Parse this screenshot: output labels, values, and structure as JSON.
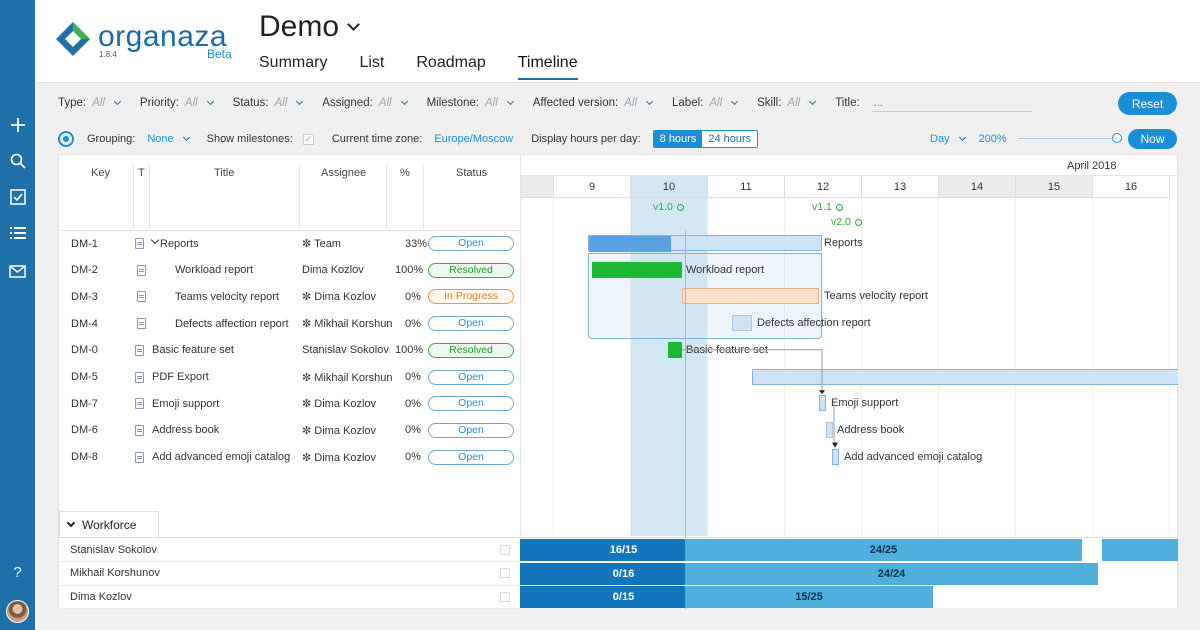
{
  "app": {
    "name": "organaza",
    "version": "1.8.4",
    "badge": "Beta",
    "project": "Demo"
  },
  "tabs": [
    {
      "label": "Summary",
      "active": false
    },
    {
      "label": "List",
      "active": false
    },
    {
      "label": "Roadmap",
      "active": false
    },
    {
      "label": "Timeline",
      "active": true
    }
  ],
  "filters": [
    {
      "label": "Type:",
      "value": "All"
    },
    {
      "label": "Priority:",
      "value": "All"
    },
    {
      "label": "Status:",
      "value": "All"
    },
    {
      "label": "Assigned:",
      "value": "All"
    },
    {
      "label": "Milestone:",
      "value": "All"
    },
    {
      "label": "Affected version:",
      "value": "All"
    },
    {
      "label": "Label:",
      "value": "All"
    },
    {
      "label": "Skill:",
      "value": "All"
    }
  ],
  "title_filter": {
    "label": "Title:",
    "placeholder": "..."
  },
  "reset_label": "Reset",
  "options": {
    "grouping_label": "Grouping:",
    "grouping_value": "None",
    "milestones_label": "Show milestones:",
    "timezone_label": "Current time zone:",
    "timezone_value": "Europe/Moscow",
    "hours_label": "Display hours per day:",
    "hours_8": "8 hours",
    "hours_24": "24 hours",
    "scale": "Day",
    "zoom": "200%",
    "zoom_level": 1.0,
    "now_label": "Now"
  },
  "columns": {
    "key": "Key",
    "type": "T",
    "title": "Title",
    "assignee": "Assignee",
    "percent": "%",
    "status": "Status"
  },
  "tasks": [
    {
      "key": "DM-1",
      "title": "Reports",
      "assignee": "✼ Team",
      "percent": "33%",
      "status": "Open",
      "status_type": "open",
      "indent": 0,
      "parent": true
    },
    {
      "key": "DM-2",
      "title": "Workload report",
      "assignee": "Dima Kozlov",
      "percent": "100%",
      "status": "Resolved",
      "status_type": "resolved",
      "indent": 1
    },
    {
      "key": "DM-3",
      "title": "Teams velocity report",
      "assignee": "✼ Dima Kozlov",
      "percent": "0%",
      "status": "In Progress",
      "status_type": "progress",
      "indent": 1
    },
    {
      "key": "DM-4",
      "title": "Defects affection report",
      "assignee": "✼ Mikhail Korshun",
      "percent": "0%",
      "status": "Open",
      "status_type": "open",
      "indent": 1
    },
    {
      "key": "DM-0",
      "title": "Basic feature set",
      "assignee": "Stanislav Sokolov",
      "percent": "100%",
      "status": "Resolved",
      "status_type": "resolved",
      "indent": 0
    },
    {
      "key": "DM-5",
      "title": "PDF Export",
      "assignee": "✼ Mikhail Korshun",
      "percent": "0%",
      "status": "Open",
      "status_type": "open",
      "indent": 0
    },
    {
      "key": "DM-7",
      "title": "Emoji support",
      "assignee": "✼ Dima Kozlov",
      "percent": "0%",
      "status": "Open",
      "status_type": "open",
      "indent": 0
    },
    {
      "key": "DM-6",
      "title": "Address book",
      "assignee": "✼ Dima Kozlov",
      "percent": "0%",
      "status": "Open",
      "status_type": "open",
      "indent": 0
    },
    {
      "key": "DM-8",
      "title": "Add advanced emoji catalog",
      "assignee": "✼ Dima Kozlov",
      "percent": "0%",
      "status": "Open",
      "status_type": "open",
      "indent": 0
    }
  ],
  "timeline": {
    "month": "April 2018",
    "days": [
      "",
      "9",
      "10",
      "11",
      "12",
      "13",
      "14",
      "15",
      "16"
    ],
    "weekend_days": [
      "",
      "14",
      "15"
    ],
    "today": "10",
    "milestones": [
      {
        "label": "v1.0",
        "day": "10"
      },
      {
        "label": "v1.1",
        "day": "12"
      },
      {
        "label": "v2.0",
        "day": "12"
      }
    ],
    "bar_labels": [
      "Reports",
      "Workload report",
      "Teams velocity report",
      "Defects affection report",
      "Basic feature set",
      "",
      "Emoji support",
      "Address book",
      "Add advanced emoji catalog"
    ]
  },
  "workforce": {
    "label": "Workforce",
    "people": [
      {
        "name": "Stanislav Sokolov",
        "cells": [
          "",
          "16/15",
          "24/25",
          ""
        ]
      },
      {
        "name": "Mikhail Korshunov",
        "cells": [
          "",
          "0/16",
          "24/24",
          ""
        ]
      },
      {
        "name": "Dima Kozlov",
        "cells": [
          "",
          "0/15",
          "15/25"
        ]
      }
    ]
  },
  "colors": {
    "brand": "#1f6fa8",
    "accent": "#1b8fd6",
    "resolved": "#1db832",
    "open_bar": "#cfe3f6",
    "progress_bar": "#fbe1cc",
    "workforce_dark": "#1376bd",
    "workforce_light": "#4fb0de"
  },
  "sidebar_icons": [
    "plus-icon",
    "search-icon",
    "checkbox-icon",
    "list-icon",
    "mail-icon",
    "help-icon"
  ]
}
